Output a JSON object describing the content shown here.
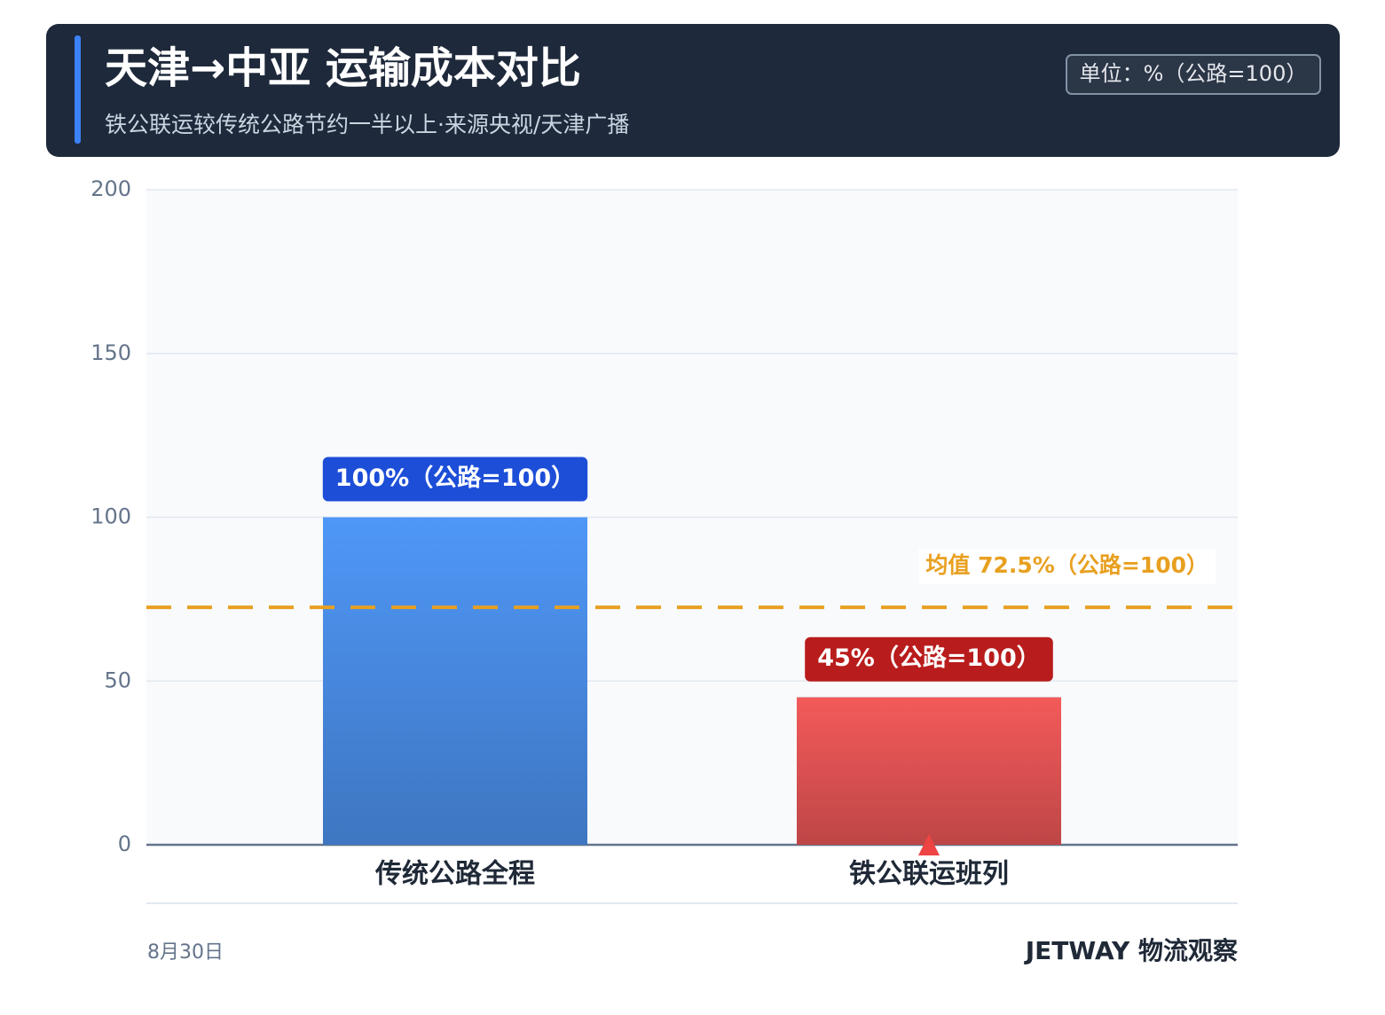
{
  "chart_data": {
    "type": "bar",
    "title": "天津→中亚 运输成本对比",
    "subtitle": "铁公联运较传统公路节约一半以上·来源央视/天津广播",
    "unit": "单位：%（公路=100）",
    "categories": [
      "传统公路全程",
      "铁公联运班列"
    ],
    "values": [
      100,
      45
    ],
    "value_labels": [
      "100%（公路=100）",
      "45%（公路=100）"
    ],
    "colors": [
      "#4f97f7",
      "#f45a5a"
    ],
    "label_colors": [
      "#1d4ed8",
      "#b91c1c"
    ],
    "reference_line": {
      "value": 72.5,
      "label": "均值 72.5%（公路=100）",
      "color": "#e8a020"
    },
    "ylim": [
      0,
      200
    ],
    "yticks": [
      0,
      50,
      100,
      150,
      200
    ],
    "grid": true,
    "date": "8月30日",
    "brand": "JETWAY 物流观察"
  }
}
